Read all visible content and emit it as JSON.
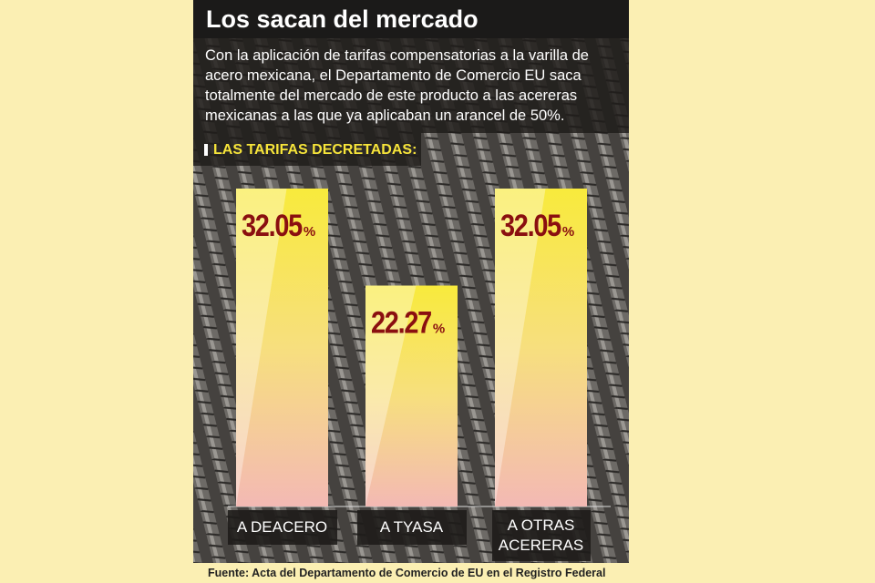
{
  "chart_data": {
    "type": "bar",
    "title": "Los sacan del mercado",
    "subtitle": "Con la aplicación de tarifas compensatorias a la varilla de acero mexicana, el Departamento de Comercio EU saca totalmente del mercado de este producto a las acereras mexicanas a las que ya aplicaban un arancel de 50%.",
    "section_label": "LAS TARIFAS DECRETADAS:",
    "categories": [
      "A DEACERO",
      "A TYASA",
      "A OTRAS ACERERAS"
    ],
    "values": [
      32.05,
      22.27,
      32.05
    ],
    "value_suffix": "%",
    "source": "Fuente: Acta del Departamento de Comercio de EU en el Registro Federal"
  }
}
